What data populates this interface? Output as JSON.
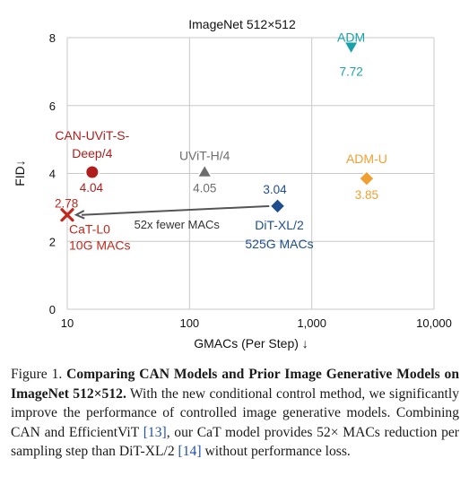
{
  "chart_data": {
    "type": "scatter",
    "title": "ImageNet 512×512",
    "xlabel": "GMACs (Per Step) ↓",
    "ylabel": "FID↓",
    "xscale": "log",
    "xlim": [
      10,
      10000
    ],
    "ylim": [
      0,
      8
    ],
    "x_ticks": [
      10,
      100,
      1000,
      10000
    ],
    "x_tick_labels": [
      "10",
      "100",
      "1,000",
      "10,000"
    ],
    "y_ticks": [
      0,
      2,
      4,
      6,
      8
    ],
    "y_tick_labels": [
      "0",
      "2",
      "4",
      "6",
      "8"
    ],
    "grid": true,
    "points": [
      {
        "id": "adm",
        "label": "ADM",
        "x": 2100,
        "y": 7.72,
        "value_label": "7.72",
        "marker": "triangle-down",
        "color": "#17a2a8"
      },
      {
        "id": "can-uvit",
        "label": "CAN-UViT-S-Deep/4",
        "label_lines": [
          "CAN-UViT-S-",
          "Deep/4"
        ],
        "x": 16,
        "y": 4.04,
        "value_label": "4.04",
        "marker": "circle",
        "color": "#b01d1d"
      },
      {
        "id": "uvit",
        "label": "UViT-H/4",
        "x": 133,
        "y": 4.05,
        "value_label": "4.05",
        "marker": "triangle-up",
        "color": "#6e6e6e"
      },
      {
        "id": "adm-u",
        "label": "ADM-U",
        "x": 2813,
        "y": 3.85,
        "value_label": "3.85",
        "marker": "diamond",
        "color": "#f0a030"
      },
      {
        "id": "dit",
        "label": "DiT-XL/2 525G MACs",
        "label_lines": [
          "DiT-XL/2",
          "525G MACs"
        ],
        "x": 525,
        "y": 3.04,
        "value_label": "3.04",
        "marker": "diamond",
        "color": "#1f4e8c"
      },
      {
        "id": "cat",
        "label": "CaT-L0 10G MACs",
        "label_lines": [
          "CaT-L0",
          "10G MACs"
        ],
        "x": 10,
        "y": 2.78,
        "value_label": "2.78",
        "marker": "x",
        "color": "#c0281e"
      }
    ],
    "annotation": {
      "text": "52x fewer MACs",
      "from": "dit",
      "to": "cat"
    }
  },
  "caption": {
    "figure_label": "Figure 1.",
    "bold": "Comparing CAN Models and Prior Image Generative Models on ImageNet 512×512.",
    "text_1": "With the new conditional control method, we significantly improve the performance of controlled image generative models. Combining CAN and EfficientViT",
    "ref_1": "[13]",
    "text_2": ", our CaT model provides 52× MACs reduction per sampling step than DiT-XL/2",
    "ref_2": "[14]",
    "text_3": "without performance loss."
  }
}
